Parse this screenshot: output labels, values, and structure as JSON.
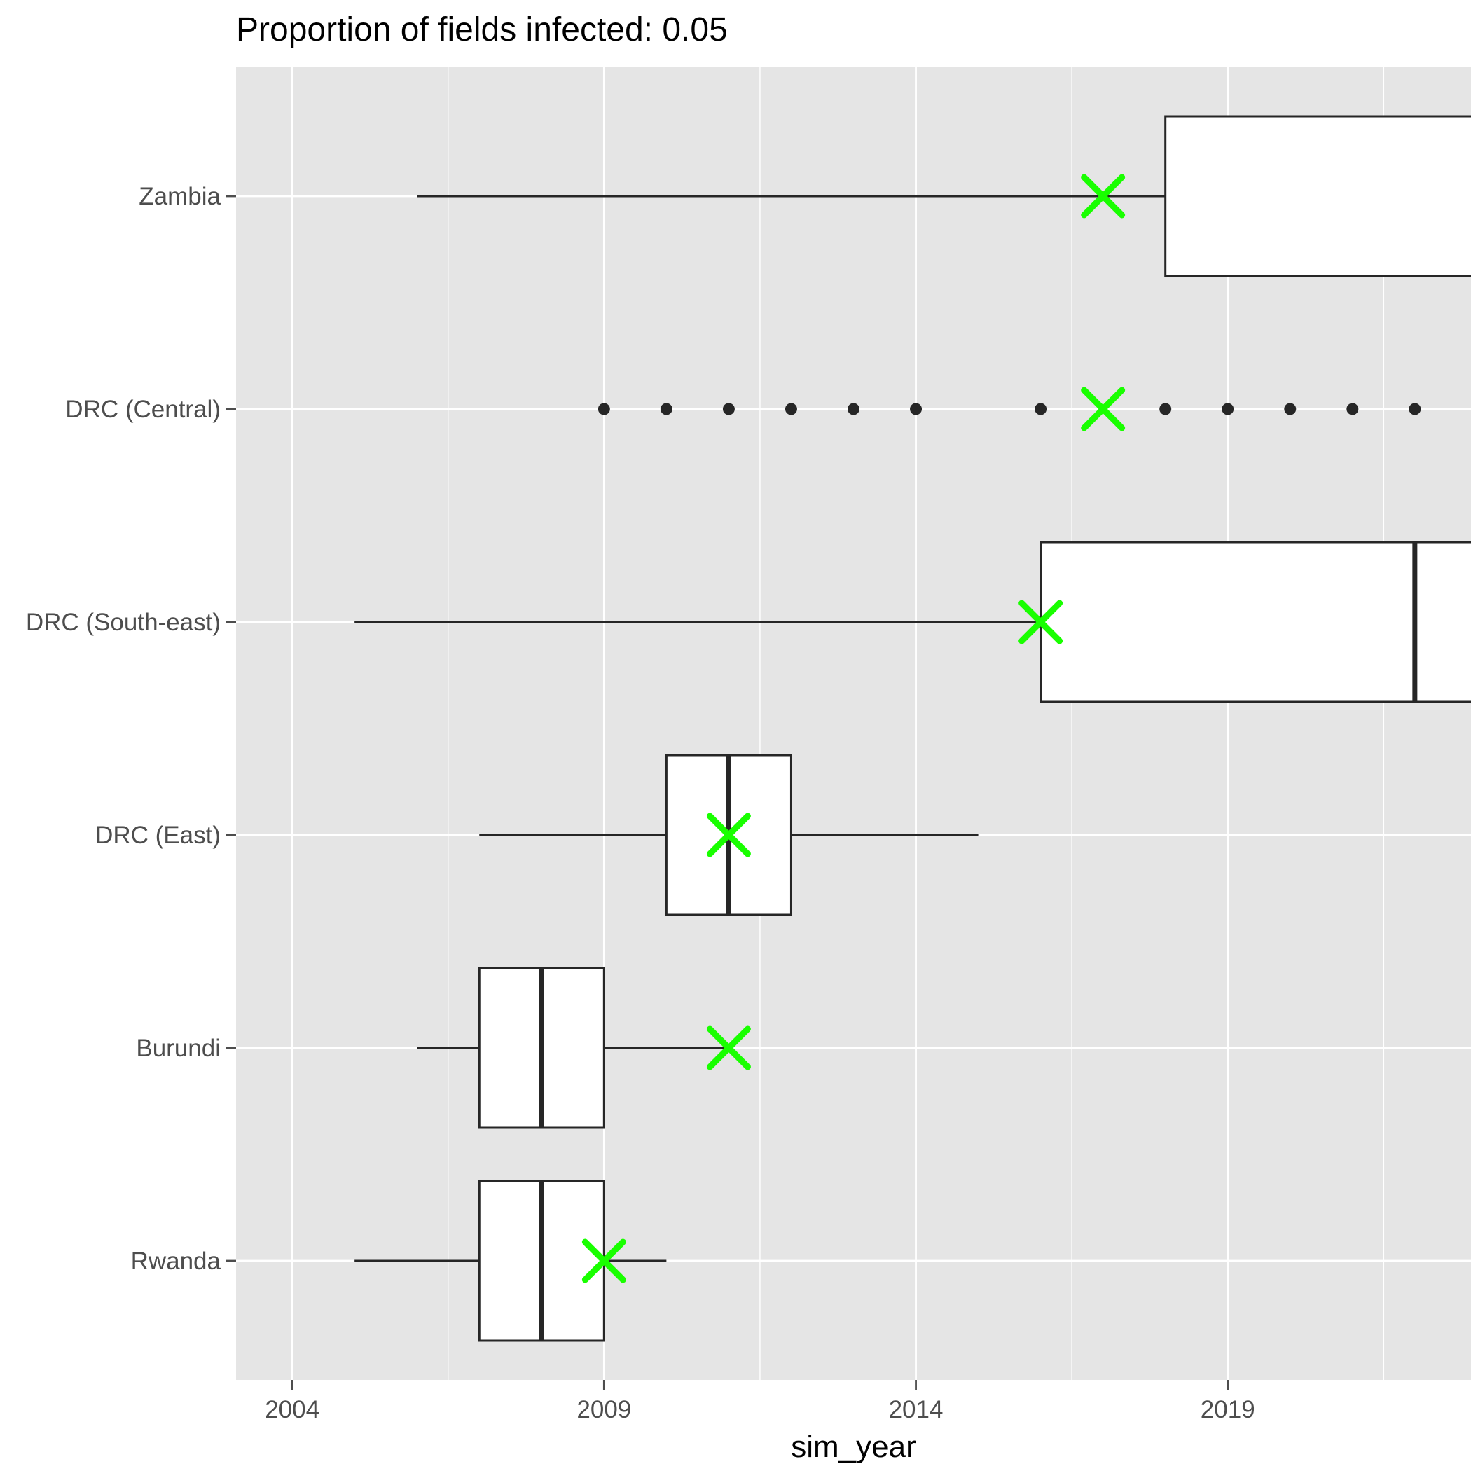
{
  "chart_data": {
    "type": "boxplot",
    "orientation": "horizontal",
    "title": "Proportion of fields infected: 0.05",
    "xlabel": "sim_year",
    "ylabel": "",
    "xlim": [
      2003.1,
      2022.9
    ],
    "x_ticks": [
      2004,
      2009,
      2014,
      2019
    ],
    "x_tick_labels": [
      "2004",
      "2009",
      "2014",
      "2019"
    ],
    "x_minor_ticks": [
      2006.5,
      2011.5,
      2016.5,
      2021.5
    ],
    "grid": true,
    "legend": "none",
    "categories": [
      "Rwanda",
      "Burundi",
      "DRC (East)",
      "DRC (South-east)",
      "DRC (Central)",
      "Zambia"
    ],
    "boxes": [
      {
        "category": "Rwanda",
        "whisker_low": 2005,
        "q1": 2007,
        "median": 2008,
        "q3": 2009,
        "whisker_high": 2010,
        "outliers": []
      },
      {
        "category": "Burundi",
        "whisker_low": 2006,
        "q1": 2007,
        "median": 2008,
        "q3": 2009,
        "whisker_high": 2011,
        "outliers": []
      },
      {
        "category": "DRC (East)",
        "whisker_low": 2007,
        "q1": 2010,
        "median": 2011,
        "q3": 2012,
        "whisker_high": 2015,
        "outliers": []
      },
      {
        "category": "DRC (South-east)",
        "whisker_low": 2005,
        "q1": 2016,
        "median": 2022,
        "q3": 2023,
        "whisker_high": null,
        "outliers": []
      },
      {
        "category": "DRC (Central)",
        "whisker_low": null,
        "q1": null,
        "median": null,
        "q3": null,
        "whisker_high": null,
        "outliers": [
          2009,
          2010,
          2011,
          2012,
          2013,
          2014,
          2016,
          2018,
          2019,
          2020,
          2021,
          2022
        ]
      },
      {
        "category": "Zambia",
        "whisker_low": 2006,
        "q1": 2018,
        "median": null,
        "q3": 2023,
        "whisker_high": null,
        "outliers": []
      }
    ],
    "observed_markers": [
      {
        "category": "Rwanda",
        "x": 2009
      },
      {
        "category": "Burundi",
        "x": 2011
      },
      {
        "category": "DRC (East)",
        "x": 2011
      },
      {
        "category": "DRC (South-east)",
        "x": 2016
      },
      {
        "category": "DRC (Central)",
        "x": 2017
      },
      {
        "category": "Zambia",
        "x": 2017
      }
    ],
    "colors": {
      "panel": "#e5e5e5",
      "grid": "#ffffff",
      "box_fill": "#ffffff",
      "box_stroke": "#262626",
      "marker": "#19ff00",
      "text": "#1a1a1a",
      "axis_text": "#4d4d4d"
    }
  }
}
